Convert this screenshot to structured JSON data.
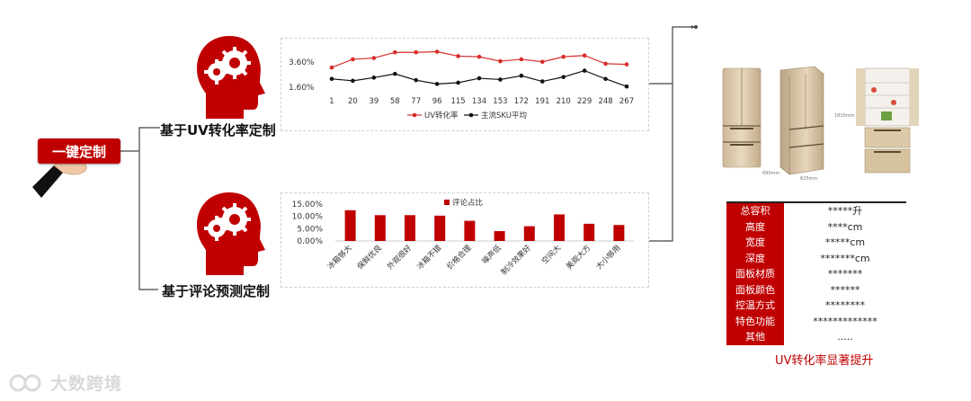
{
  "start_button": {
    "label": "一键定制"
  },
  "branches": [
    {
      "label": "基于UV转化率定制"
    },
    {
      "label": "基于评论预测定制"
    }
  ],
  "colors": {
    "accent": "#c00000",
    "series_a": "#d92b2b",
    "series_b": "#111111"
  },
  "chart_data": [
    {
      "type": "line",
      "x": [
        "1",
        "20",
        "39",
        "58",
        "77",
        "96",
        "115",
        "134",
        "153",
        "172",
        "191",
        "210",
        "229",
        "248",
        "267"
      ],
      "y_ticks": [
        "3.60%",
        "1.60%"
      ],
      "series": [
        {
          "name": "UV转化率",
          "values": [
            3.1,
            3.75,
            3.85,
            4.3,
            4.3,
            4.35,
            4.0,
            3.95,
            3.6,
            3.75,
            3.55,
            3.95,
            4.05,
            3.4,
            3.35
          ]
        },
        {
          "name": "主流SKU平均",
          "values": [
            2.2,
            2.05,
            2.3,
            2.6,
            2.1,
            1.8,
            1.9,
            2.25,
            2.15,
            2.45,
            2.0,
            2.35,
            2.85,
            2.2,
            1.6
          ]
        }
      ],
      "legend": "bottom"
    },
    {
      "type": "bar",
      "categories": [
        "冰箱够大",
        "保鲜优良",
        "外观很好",
        "冰箱不错",
        "价格合理",
        "噪声低",
        "制冷效果好",
        "空间大",
        "美观大方",
        "大小够用"
      ],
      "values": [
        12.5,
        10.5,
        10.5,
        10.3,
        8.2,
        4.0,
        6.0,
        10.8,
        7.0,
        6.5
      ],
      "series": [
        {
          "name": "评论占比"
        }
      ],
      "y_ticks": [
        "15.00%",
        "10.00%",
        "5.00%",
        "0.00%"
      ],
      "ylim": [
        0,
        15
      ],
      "legend": "top"
    }
  ],
  "product_images": {
    "dims": [
      "690mm",
      "625mm",
      "1810mm"
    ]
  },
  "spec_table": {
    "rows": [
      {
        "key": "总容积",
        "value": "*****升"
      },
      {
        "key": "高度",
        "value": "****cm"
      },
      {
        "key": "宽度",
        "value": "*****cm"
      },
      {
        "key": "深度",
        "value": "*******cm"
      },
      {
        "key": "面板材质",
        "value": "*******"
      },
      {
        "key": "面板颜色",
        "value": "******"
      },
      {
        "key": "控温方式",
        "value": "********"
      },
      {
        "key": "特色功能",
        "value": "*************"
      },
      {
        "key": "其他",
        "value": "....."
      }
    ],
    "caption": "UV转化率显著提升"
  },
  "watermark": {
    "text": "大数跨境"
  }
}
